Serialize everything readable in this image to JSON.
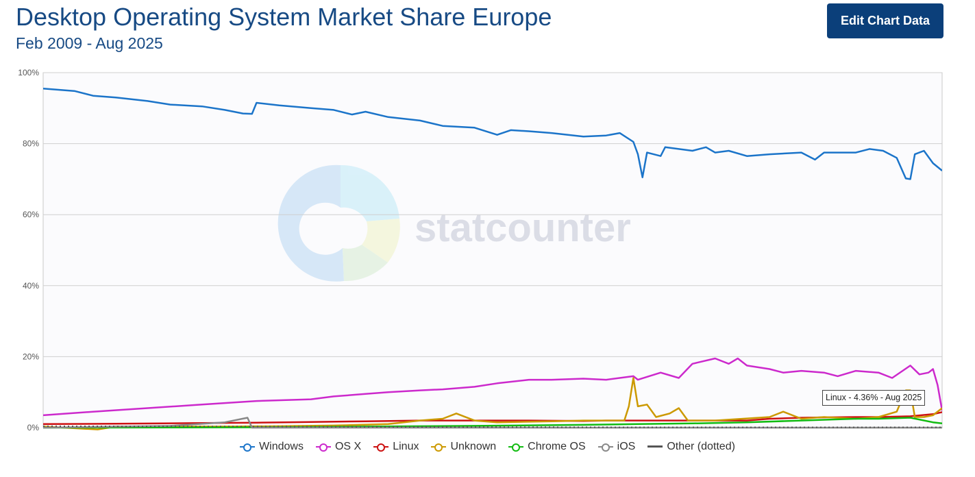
{
  "header": {
    "title": "Desktop Operating System Market Share Europe",
    "subtitle": "Feb 2009 - Aug 2025"
  },
  "toolbar": {
    "edit_label": "Edit Chart Data"
  },
  "watermark": {
    "text": "statcounter"
  },
  "tooltip": {
    "text": "Linux - 4.36% - Aug 2025"
  },
  "chart_data": {
    "type": "line",
    "x_start": "2009-02",
    "x_end": "2025-08",
    "ylim": [
      0,
      100
    ],
    "y_ticks": [
      "0%",
      "20%",
      "40%",
      "60%",
      "80%",
      "100%"
    ],
    "grid": true,
    "legend_position": "bottom",
    "series": [
      {
        "name": "Windows",
        "color": "#1b74c9",
        "style": "solid",
        "points": [
          [
            "2009-02",
            95.5
          ],
          [
            "2009-09",
            94.8
          ],
          [
            "2010-01",
            93.5
          ],
          [
            "2010-06",
            93.0
          ],
          [
            "2011-01",
            92.0
          ],
          [
            "2011-06",
            91.0
          ],
          [
            "2012-01",
            90.5
          ],
          [
            "2012-06",
            89.5
          ],
          [
            "2012-10",
            88.5
          ],
          [
            "2012-12",
            88.4
          ],
          [
            "2013-01",
            91.5
          ],
          [
            "2013-06",
            90.8
          ],
          [
            "2014-01",
            90.0
          ],
          [
            "2014-06",
            89.5
          ],
          [
            "2014-10",
            88.2
          ],
          [
            "2015-01",
            89.0
          ],
          [
            "2015-06",
            87.5
          ],
          [
            "2016-01",
            86.5
          ],
          [
            "2016-06",
            85.0
          ],
          [
            "2017-01",
            84.5
          ],
          [
            "2017-06",
            82.5
          ],
          [
            "2017-09",
            83.8
          ],
          [
            "2018-01",
            83.5
          ],
          [
            "2018-06",
            83.0
          ],
          [
            "2019-01",
            82.0
          ],
          [
            "2019-06",
            82.3
          ],
          [
            "2019-09",
            83.0
          ],
          [
            "2019-12",
            80.5
          ],
          [
            "2020-01",
            77.0
          ],
          [
            "2020-02",
            70.5
          ],
          [
            "2020-03",
            77.5
          ],
          [
            "2020-06",
            76.5
          ],
          [
            "2020-07",
            79.0
          ],
          [
            "2021-01",
            78.0
          ],
          [
            "2021-04",
            79.0
          ],
          [
            "2021-06",
            77.5
          ],
          [
            "2021-09",
            78.0
          ],
          [
            "2022-01",
            76.5
          ],
          [
            "2022-06",
            77.0
          ],
          [
            "2023-01",
            77.5
          ],
          [
            "2023-04",
            75.5
          ],
          [
            "2023-06",
            77.5
          ],
          [
            "2024-01",
            77.5
          ],
          [
            "2024-04",
            78.5
          ],
          [
            "2024-07",
            78.0
          ],
          [
            "2024-10",
            76.0
          ],
          [
            "2024-12",
            70.2
          ],
          [
            "2025-01",
            70.0
          ],
          [
            "2025-02",
            77.0
          ],
          [
            "2025-04",
            78.0
          ],
          [
            "2025-06",
            74.5
          ],
          [
            "2025-08",
            72.4
          ]
        ]
      },
      {
        "name": "OS X",
        "color": "#cc29cc",
        "style": "solid",
        "points": [
          [
            "2009-02",
            3.5
          ],
          [
            "2010-01",
            4.5
          ],
          [
            "2011-01",
            5.5
          ],
          [
            "2012-01",
            6.5
          ],
          [
            "2013-01",
            7.5
          ],
          [
            "2014-01",
            8.0
          ],
          [
            "2014-06",
            8.8
          ],
          [
            "2015-01",
            9.5
          ],
          [
            "2015-06",
            10.0
          ],
          [
            "2016-01",
            10.5
          ],
          [
            "2016-06",
            10.8
          ],
          [
            "2017-01",
            11.5
          ],
          [
            "2017-06",
            12.5
          ],
          [
            "2018-01",
            13.5
          ],
          [
            "2018-06",
            13.5
          ],
          [
            "2019-01",
            13.8
          ],
          [
            "2019-06",
            13.5
          ],
          [
            "2019-12",
            14.5
          ],
          [
            "2020-01",
            13.5
          ],
          [
            "2020-06",
            15.5
          ],
          [
            "2020-10",
            14.0
          ],
          [
            "2021-01",
            18.0
          ],
          [
            "2021-06",
            19.5
          ],
          [
            "2021-09",
            18.0
          ],
          [
            "2021-11",
            19.5
          ],
          [
            "2022-01",
            17.5
          ],
          [
            "2022-06",
            16.5
          ],
          [
            "2022-09",
            15.5
          ],
          [
            "2023-01",
            16.0
          ],
          [
            "2023-06",
            15.5
          ],
          [
            "2023-09",
            14.5
          ],
          [
            "2024-01",
            16.0
          ],
          [
            "2024-06",
            15.5
          ],
          [
            "2024-09",
            14.0
          ],
          [
            "2025-01",
            17.5
          ],
          [
            "2025-03",
            15.0
          ],
          [
            "2025-05",
            15.5
          ],
          [
            "2025-06",
            16.5
          ],
          [
            "2025-07",
            12.0
          ],
          [
            "2025-08",
            4.8
          ]
        ]
      },
      {
        "name": "Linux",
        "color": "#cc1111",
        "style": "solid",
        "points": [
          [
            "2009-02",
            1.0
          ],
          [
            "2010-06",
            1.1
          ],
          [
            "2012-01",
            1.3
          ],
          [
            "2013-01",
            1.4
          ],
          [
            "2014-01",
            1.6
          ],
          [
            "2015-01",
            1.8
          ],
          [
            "2016-01",
            2.0
          ],
          [
            "2017-01",
            2.0
          ],
          [
            "2018-01",
            2.0
          ],
          [
            "2019-01",
            1.9
          ],
          [
            "2019-06",
            2.0
          ],
          [
            "2020-01",
            2.0
          ],
          [
            "2021-01",
            2.0
          ],
          [
            "2022-01",
            2.0
          ],
          [
            "2022-06",
            2.5
          ],
          [
            "2023-01",
            2.8
          ],
          [
            "2023-06",
            2.9
          ],
          [
            "2024-01",
            3.0
          ],
          [
            "2024-06",
            3.0
          ],
          [
            "2025-01",
            3.2
          ],
          [
            "2025-06",
            3.8
          ],
          [
            "2025-08",
            4.36
          ]
        ]
      },
      {
        "name": "Unknown",
        "color": "#cc9900",
        "style": "solid",
        "points": [
          [
            "2009-02",
            0.3
          ],
          [
            "2010-02",
            -0.5
          ],
          [
            "2010-06",
            0.3
          ],
          [
            "2012-06",
            0.3
          ],
          [
            "2013-06",
            0.4
          ],
          [
            "2014-06",
            0.6
          ],
          [
            "2015-06",
            1.0
          ],
          [
            "2016-01",
            2.0
          ],
          [
            "2016-06",
            2.5
          ],
          [
            "2016-09",
            4.0
          ],
          [
            "2017-01",
            2.0
          ],
          [
            "2017-06",
            1.5
          ],
          [
            "2018-06",
            1.8
          ],
          [
            "2019-01",
            2.0
          ],
          [
            "2019-06",
            2.0
          ],
          [
            "2019-10",
            2.0
          ],
          [
            "2019-11",
            6.0
          ],
          [
            "2019-12",
            14.0
          ],
          [
            "2020-01",
            6.0
          ],
          [
            "2020-03",
            6.5
          ],
          [
            "2020-05",
            3.0
          ],
          [
            "2020-08",
            4.0
          ],
          [
            "2020-10",
            5.5
          ],
          [
            "2020-12",
            2.0
          ],
          [
            "2021-06",
            2.0
          ],
          [
            "2022-06",
            3.0
          ],
          [
            "2022-09",
            4.5
          ],
          [
            "2023-01",
            2.5
          ],
          [
            "2023-06",
            3.0
          ],
          [
            "2024-01",
            2.5
          ],
          [
            "2024-06",
            3.0
          ],
          [
            "2024-10",
            4.5
          ],
          [
            "2024-12",
            10.5
          ],
          [
            "2025-01",
            10.5
          ],
          [
            "2025-02",
            3.0
          ],
          [
            "2025-04",
            3.0
          ],
          [
            "2025-06",
            3.5
          ],
          [
            "2025-08",
            5.5
          ]
        ]
      },
      {
        "name": "Chrome OS",
        "color": "#11bb11",
        "style": "solid",
        "points": [
          [
            "2009-02",
            0.0
          ],
          [
            "2013-01",
            0.1
          ],
          [
            "2015-01",
            0.3
          ],
          [
            "2017-01",
            0.5
          ],
          [
            "2019-01",
            0.8
          ],
          [
            "2020-01",
            1.0
          ],
          [
            "2021-01",
            1.2
          ],
          [
            "2022-01",
            1.5
          ],
          [
            "2023-01",
            2.0
          ],
          [
            "2024-01",
            2.5
          ],
          [
            "2024-06",
            2.5
          ],
          [
            "2025-01",
            2.8
          ],
          [
            "2025-06",
            1.5
          ],
          [
            "2025-08",
            1.2
          ]
        ]
      },
      {
        "name": "iOS",
        "color": "#888888",
        "style": "solid",
        "points": [
          [
            "2009-02",
            0.0
          ],
          [
            "2011-06",
            0.5
          ],
          [
            "2012-06",
            1.5
          ],
          [
            "2012-11",
            2.8
          ],
          [
            "2012-12",
            0.0
          ],
          [
            "2025-08",
            0.0
          ]
        ]
      },
      {
        "name": "Other (dotted)",
        "color": "#555555",
        "style": "dotted",
        "points": [
          [
            "2009-02",
            0.4
          ],
          [
            "2013-06",
            0.3
          ],
          [
            "2016-01",
            0.2
          ],
          [
            "2020-01",
            0.1
          ],
          [
            "2025-08",
            0.1
          ]
        ]
      }
    ]
  }
}
